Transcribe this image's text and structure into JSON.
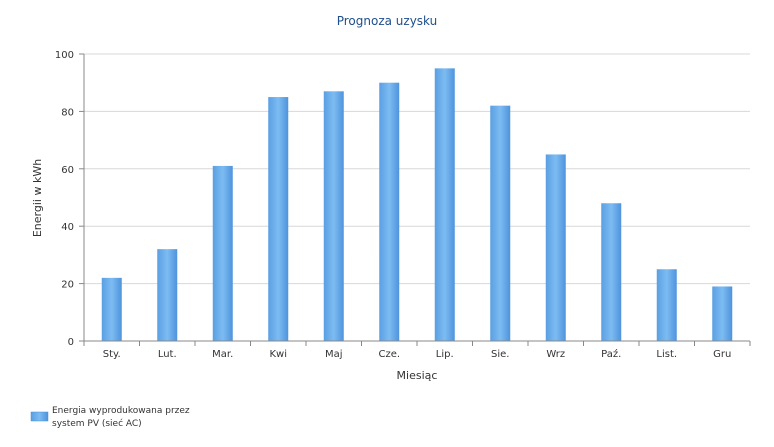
{
  "chart_data": {
    "type": "bar",
    "title": "Prognoza uzysku",
    "xlabel": "Miesiąc",
    "ylabel": "Energii w kWh",
    "categories": [
      "Sty.",
      "Lut.",
      "Mar.",
      "Kwi",
      "Maj",
      "Cze.",
      "Lip.",
      "Sie.",
      "Wrz",
      "Paź.",
      "List.",
      "Gru"
    ],
    "series": [
      {
        "name": "Energia wyprodukowana przez system PV (sieć AC)",
        "values": [
          22,
          32,
          61,
          85,
          87,
          90,
          95,
          82,
          65,
          48,
          25,
          19
        ]
      }
    ],
    "ylim": [
      0,
      100
    ],
    "yticks": [
      0,
      20,
      40,
      60,
      80,
      100
    ],
    "grid": true,
    "legend_position": "bottom-left",
    "legend_lines": [
      "Energia wyprodukowana przez",
      "system PV (sieć AC)"
    ],
    "colors": {
      "bar": "#6fb1ee",
      "bar_dark": "#4a90d9",
      "title": "#1f4f8b",
      "grid": "#d8d8d8"
    }
  }
}
